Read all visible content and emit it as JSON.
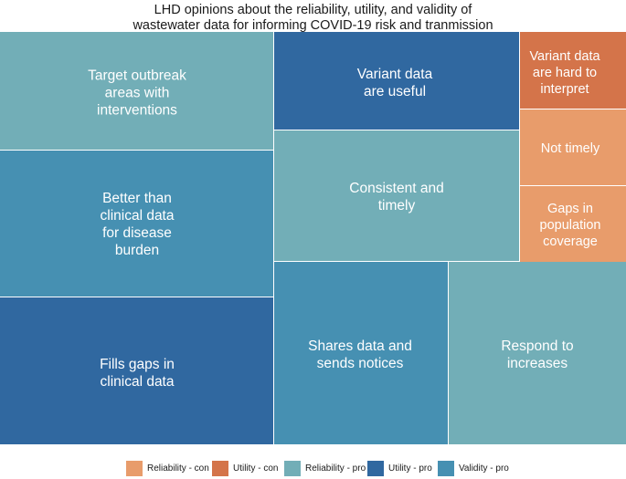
{
  "chart_data": {
    "type": "treemap",
    "title": "LHD opinions about the reliability, utility, and validity of wastewater data for informing COVID-19 risk and tranmission",
    "title_lines": [
      "LHD opinions about the reliability, utility, and validity of",
      "wastewater data for informing COVID-19 risk and tranmission"
    ],
    "legend_position": "bottom",
    "categories": [
      {
        "name": "Reliability - con",
        "color": "#E89C6B"
      },
      {
        "name": "Utility - con",
        "color": "#D4744A"
      },
      {
        "name": "Reliability - pro",
        "color": "#72AEB7"
      },
      {
        "name": "Utility - pro",
        "color": "#3068A0"
      },
      {
        "name": "Validity - pro",
        "color": "#4690B2"
      }
    ],
    "tiles": [
      {
        "label": "Target outbreak areas with interventions",
        "lines": [
          "Target outbreak",
          "areas with",
          "interventions"
        ],
        "category": "Reliability - pro",
        "relative_size": 0.097
      },
      {
        "label": "Better than clinical data for disease burden",
        "lines": [
          "Better than",
          "clinical data",
          "for disease",
          "burden"
        ],
        "category": "Validity - pro",
        "relative_size": 0.113
      },
      {
        "label": "Fills gaps in clinical data",
        "lines": [
          "Fills gaps in",
          "clinical data"
        ],
        "category": "Utility - pro",
        "relative_size": 0.113
      },
      {
        "label": "Variant data are useful",
        "lines": [
          "Variant data",
          "are useful"
        ],
        "category": "Utility - pro",
        "relative_size": 0.063
      },
      {
        "label": "Consistent and timely",
        "lines": [
          "Consistent and",
          "timely"
        ],
        "category": "Reliability - pro",
        "relative_size": 0.113
      },
      {
        "label": "Shares data and sends notices",
        "lines": [
          "Shares data and",
          "sends notices"
        ],
        "category": "Validity - pro",
        "relative_size": 0.094
      },
      {
        "label": "Respond to increases",
        "lines": [
          "Respond to",
          "increases"
        ],
        "category": "Reliability - pro",
        "relative_size": 0.097
      },
      {
        "label": "Variant data are hard to interpret",
        "lines": [
          "Variant data",
          "are hard to",
          "interpret"
        ],
        "category": "Utility - con",
        "relative_size": 0.03
      },
      {
        "label": "Not timely",
        "lines": [
          "Not timely"
        ],
        "category": "Reliability - con",
        "relative_size": 0.03
      },
      {
        "label": "Gaps in population coverage",
        "lines": [
          "Gaps in",
          "population",
          "coverage"
        ],
        "category": "Reliability - con",
        "relative_size": 0.03
      }
    ]
  }
}
